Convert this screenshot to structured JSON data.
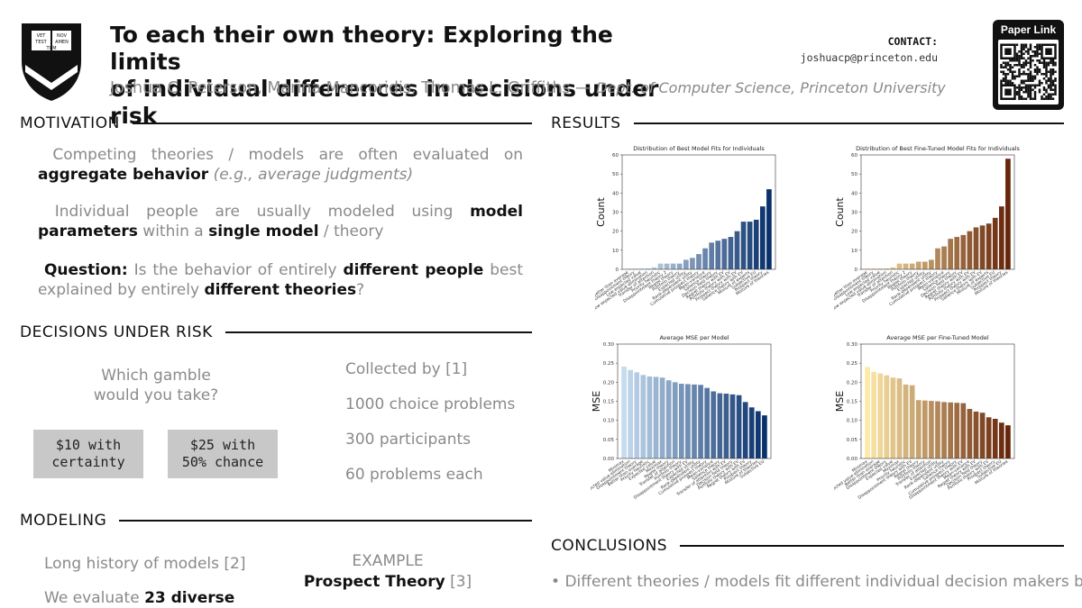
{
  "header": {
    "title_line1": "To each their own theory: Exploring the limits",
    "title_line2": "of individual differences in decisions under risk",
    "authors": "Joshua C. Peterson, Marina Mancoridis, Thomas L. Griffiths",
    "dash": " — ",
    "affiliation": "Dept. of Computer Science, Princeton University",
    "contact_label": "CONTACT:",
    "contact_email": "joshuacp@princeton.edu",
    "paper_link_label": "Paper Link",
    "crest_text": [
      "VET",
      "NOV",
      "TEST",
      "AMEN",
      "TUM"
    ]
  },
  "sections": {
    "motivation": "MOTIVATION",
    "decisions": "DECISIONS UNDER RISK",
    "modeling": "MODELING",
    "results": "RESULTS",
    "conclusions": "CONCLUSIONS"
  },
  "motivation": {
    "p1_a": "Competing theories / models are often evaluated on ",
    "p1_b": "aggregate behavior",
    "p1_c": " (e.g., average judgments)",
    "p2_a": "Individual people are usually modeled using ",
    "p2_b": "model parameters",
    "p2_c": " within a ",
    "p2_d": "single model",
    "p2_e": " / theory",
    "p3_a": "Question:",
    "p3_b": " Is the behavior of entirely ",
    "p3_c": "different people",
    "p3_d": " best explained by entirely ",
    "p3_e": "different theories",
    "p3_f": "?"
  },
  "decisions": {
    "question_line1": "Which gamble",
    "question_line2": "would you take?",
    "option1": "$10 with\ncertainty",
    "option2": "$25 with\n50% chance",
    "facts": [
      "Collected by [1]",
      "1000 choice problems",
      "300 participants",
      "60 problems each"
    ]
  },
  "modeling": {
    "line1": "Long history of models [2]",
    "line2_a": "We evaluate ",
    "line2_b": "23 diverse",
    "example_label": "EXAMPLE",
    "example_name": "Prospect Theory",
    "example_ref": " [3]"
  },
  "conclusions": {
    "bullet1": "Different theories / models fit different individual decision makers best"
  },
  "colors": {
    "blue_dark": "#08306b",
    "blue_light": "#c6dbef",
    "orange_dark": "#67250a",
    "orange_light": "#fde9a8"
  },
  "chart_data": [
    {
      "type": "bar",
      "title": "Distribution of Best Model Fits for Individuals",
      "ylabel": "Count",
      "ylim": [
        0,
        60
      ],
      "yticks": [
        0,
        10,
        20,
        30,
        40,
        50,
        60
      ],
      "categories": [
        "Better than average",
        "Disappointment theory",
        "Low expected value",
        "Low expected value elimination",
        "Transfer of attention",
        "Priority heuristic",
        "Disappointment theory 2",
        "Regret theory",
        "Portfolio theory",
        "Expected utility",
        "Rank-dependent utility",
        "Cumulative prospect theory",
        "Mean-variance",
        "Salience theory",
        "Decision field theory",
        "Regret theory with EV",
        "Portfolio theory with EV",
        "Prospect theory with EV",
        "Salience theory with EV",
        "Mixture of experts",
        "Subjective EU",
        "Prospect theory",
        "Mixture of theories"
      ],
      "values": [
        0.5,
        0.5,
        0.5,
        0.5,
        1,
        3,
        3,
        3,
        3,
        5,
        6,
        8,
        11,
        14,
        15,
        16,
        17,
        20,
        25,
        25,
        26,
        33,
        42
      ],
      "color_scale": "blues"
    },
    {
      "type": "bar",
      "title": "Distribution of Best Fine-Tuned Model Fits for Individuals",
      "ylabel": "Count",
      "ylim": [
        0,
        60
      ],
      "yticks": [
        0,
        10,
        20,
        30,
        40,
        50,
        60
      ],
      "categories": [
        "Better than average",
        "Disappointment theory",
        "Low expected value",
        "Low expected value elimination",
        "Transfer of attention",
        "Priority heuristic",
        "Disappointment theory 2",
        "Regret theory",
        "Portfolio theory",
        "Expected utility",
        "Rank-dependent utility",
        "Cumulative prospect theory",
        "Mean-variance",
        "Salience theory",
        "Decision field theory",
        "Regret theory with EV",
        "Portfolio theory with EV",
        "Prospect theory with EV",
        "Salience theory with EV",
        "Mixture of experts",
        "Subjective EU",
        "Prospect theory",
        "Mixture of theories"
      ],
      "values": [
        0.5,
        0.5,
        0.5,
        0.5,
        1,
        3,
        3,
        3,
        4,
        4,
        5,
        11,
        12,
        16,
        17,
        18,
        20,
        22,
        23,
        24,
        27,
        33,
        58
      ],
      "color_scale": "oranges"
    },
    {
      "type": "bar",
      "title": "Average MSE per Model",
      "ylabel": "MSE",
      "ylim": [
        0,
        0.3
      ],
      "yticks": [
        0.0,
        0.05,
        0.1,
        0.15,
        0.2,
        0.25,
        0.3
      ],
      "categories": [
        "Minimax",
        "Low expected value elimination",
        "Disappointment theory",
        "Better than average",
        "Priority heuristic",
        "Expected value",
        "Maximax",
        "Regret theory",
        "Transfer of attention",
        "Portfolio theory",
        "Disappointment theory with EV",
        "Expected utility",
        "Rank-dependent utility",
        "Cumulative prospect theory",
        "Mean-variance",
        "Salience theory",
        "Transfer of attention with EV",
        "Decision field theory",
        "Portfolio theory with EV",
        "Regret theory with EV",
        "Prospect theory",
        "Mixture of theories",
        "Subjective EU"
      ],
      "values": [
        0.241,
        0.232,
        0.226,
        0.219,
        0.215,
        0.214,
        0.212,
        0.205,
        0.2,
        0.196,
        0.195,
        0.194,
        0.193,
        0.185,
        0.176,
        0.171,
        0.17,
        0.168,
        0.166,
        0.148,
        0.134,
        0.124,
        0.113
      ],
      "color_scale": "blues_reversed"
    },
    {
      "type": "bar",
      "title": "Average MSE per Fine-Tuned Model",
      "ylabel": "MSE",
      "ylim": [
        0,
        0.3
      ],
      "yticks": [
        0.0,
        0.05,
        0.1,
        0.15,
        0.2,
        0.25,
        0.3
      ],
      "categories": [
        "Minimax",
        "Low expected value elimination",
        "Better than average",
        "Disappointment theory",
        "Expected value",
        "Maximax",
        "Priority heuristic",
        "Disappointment theory with EV",
        "Regret theory",
        "Portfolio theory",
        "Transfer of attention",
        "Expected utility",
        "Rank-dependent utility",
        "Salience theory",
        "Cumulative prospect theory",
        "Disappointment theory with EV",
        "Mean-variance",
        "Regret theory with EV",
        "Decision field theory",
        "Portfolio theory with EV",
        "Prospect theory",
        "Subjective EU",
        "Mixture of theories"
      ],
      "values": [
        0.24,
        0.227,
        0.223,
        0.218,
        0.212,
        0.21,
        0.194,
        0.192,
        0.153,
        0.152,
        0.151,
        0.15,
        0.148,
        0.147,
        0.146,
        0.145,
        0.13,
        0.123,
        0.12,
        0.108,
        0.104,
        0.094,
        0.087
      ],
      "color_scale": "oranges_reversed"
    }
  ]
}
